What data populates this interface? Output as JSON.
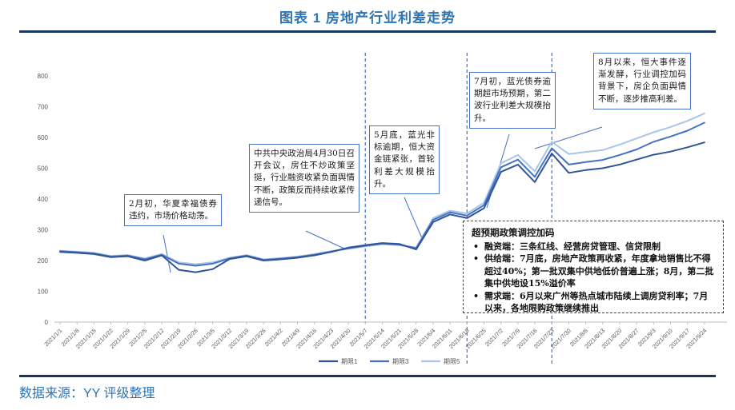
{
  "header": {
    "title": "图表 1 房地产行业利差走势"
  },
  "footer": {
    "source": "数据来源：YY 评级整理"
  },
  "colors": {
    "accent_blue": "#2E74B5",
    "rule_navy": "#17375E",
    "axis_gray": "#595959",
    "callout_border": "#4472C4"
  },
  "chart_data": {
    "type": "line",
    "title": "房地产行业利差走势",
    "xlabel": "",
    "ylabel": "",
    "ylim": [
      0,
      800
    ],
    "ytick_step": 100,
    "grid": false,
    "legend_position": "bottom",
    "x": [
      "2021/1/1",
      "2021/1/8",
      "2021/1/15",
      "2021/1/22",
      "2021/1/29",
      "2021/2/5",
      "2021/2/12",
      "2021/2/19",
      "2021/2/26",
      "2021/3/5",
      "2021/3/12",
      "2021/3/19",
      "2021/3/26",
      "2021/4/2",
      "2021/4/9",
      "2021/4/16",
      "2021/4/23",
      "2021/4/30",
      "2021/5/7",
      "2021/5/14",
      "2021/5/21",
      "2021/5/28",
      "2021/6/4",
      "2021/6/11",
      "2021/6/18",
      "2021/6/25",
      "2021/7/2",
      "2021/7/9",
      "2021/7/16",
      "2021/7/23",
      "2021/7/30",
      "2021/8/6",
      "2021/8/13",
      "2021/8/20",
      "2021/8/27",
      "2021/9/3",
      "2021/9/10",
      "2021/9/17",
      "2021/9/24"
    ],
    "series": [
      {
        "name": "期限1",
        "color": "#2F5597",
        "values": [
          228,
          225,
          221,
          211,
          214,
          200,
          217,
          170,
          162,
          172,
          205,
          214,
          200,
          204,
          209,
          217,
          228,
          242,
          250,
          257,
          254,
          236,
          325,
          350,
          338,
          370,
          488,
          512,
          455,
          548,
          485,
          494,
          500,
          512,
          528,
          544,
          554,
          568,
          584
        ]
      },
      {
        "name": "期限3",
        "color": "#4472C4",
        "values": [
          230,
          227,
          223,
          213,
          216,
          204,
          219,
          190,
          183,
          190,
          207,
          216,
          202,
          206,
          211,
          219,
          229,
          240,
          248,
          255,
          252,
          240,
          332,
          357,
          346,
          380,
          503,
          528,
          472,
          565,
          512,
          520,
          527,
          543,
          561,
          586,
          603,
          622,
          648
        ]
      },
      {
        "name": "期限5",
        "color": "#A9C5E8",
        "values": [
          232,
          229,
          225,
          215,
          218,
          207,
          221,
          194,
          188,
          194,
          209,
          218,
          204,
          208,
          213,
          221,
          231,
          238,
          246,
          253,
          250,
          242,
          338,
          362,
          353,
          388,
          516,
          543,
          490,
          586,
          546,
          553,
          559,
          577,
          597,
          617,
          634,
          654,
          678
        ]
      }
    ],
    "vlines": [
      "2021/5/7",
      "2021/6/18",
      "2021/7/23"
    ],
    "annotations": [
      {
        "text": "2月初，华夏幸福债券违约，市场价格动荡。"
      },
      {
        "text": "中共中央政治局4月30日召开会议，房住不炒政策坚挺，行业融资收紧负面舆情不断，政策反而持续收紧传递信号。"
      },
      {
        "text": "5月底，蓝光非标逾期，恒大资金链紧张，首轮利差大规模抬升。"
      },
      {
        "text": "7月初，蓝光债券逾期超市场预期，第二波行业利差大规模抬升。"
      },
      {
        "text": "8月以来，恒大事件逐渐发酵，行业调控加码背景下，房企负面舆情不断，逐步推高利差。"
      }
    ],
    "policy_box": {
      "title": "超预期政策调控加码",
      "bullets": [
        "融资端：三条红线、经营房贷管理、信贷限制",
        "供给端：7月底，房地产政策再收紧，年度拿地销售比不得超过40%；第一批双集中供地低价普遍上涨；8月，第二批集中供地设15%溢价率",
        "需求端：6月以来广州等热点城市陆续上调房贷利率；7月以来，各地限购政策继续推出"
      ]
    }
  }
}
